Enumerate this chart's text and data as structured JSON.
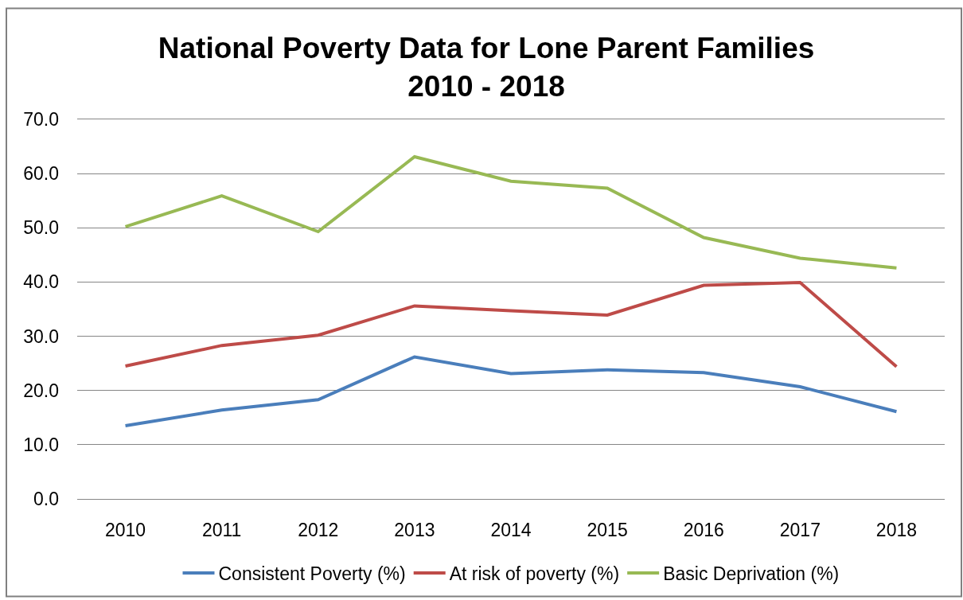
{
  "chart_data": {
    "type": "line",
    "title": "National Poverty Data for Lone Parent Families\n2010 - 2018",
    "categories": [
      "2010",
      "2011",
      "2012",
      "2013",
      "2014",
      "2015",
      "2016",
      "2017",
      "2018"
    ],
    "series": [
      {
        "name": "Consistent Poverty (%)",
        "color": "#4a7ebb",
        "values": [
          13.5,
          16.4,
          18.3,
          26.2,
          23.1,
          23.8,
          23.3,
          20.7,
          16.1
        ]
      },
      {
        "name": "At risk of poverty (%)",
        "color": "#be4b48",
        "values": [
          24.5,
          28.3,
          30.2,
          35.6,
          34.7,
          33.9,
          39.4,
          39.9,
          24.4
        ]
      },
      {
        "name": "Basic Deprivation (%)",
        "color": "#98b954",
        "values": [
          50.2,
          55.9,
          49.3,
          63.1,
          58.6,
          57.3,
          48.2,
          44.4,
          42.6
        ]
      }
    ],
    "ylim": [
      0,
      70
    ],
    "yticks": [
      {
        "value": 0,
        "label": "0.0"
      },
      {
        "value": 10,
        "label": "10.0"
      },
      {
        "value": 20,
        "label": "20.0"
      },
      {
        "value": 30,
        "label": "30.0"
      },
      {
        "value": 40,
        "label": "40.0"
      },
      {
        "value": 50,
        "label": "50.0"
      },
      {
        "value": 60,
        "label": "60.0"
      },
      {
        "value": 70,
        "label": "70.0"
      }
    ],
    "grid": "y",
    "legend": "bottom",
    "marker": "none",
    "line_style": "solid"
  }
}
